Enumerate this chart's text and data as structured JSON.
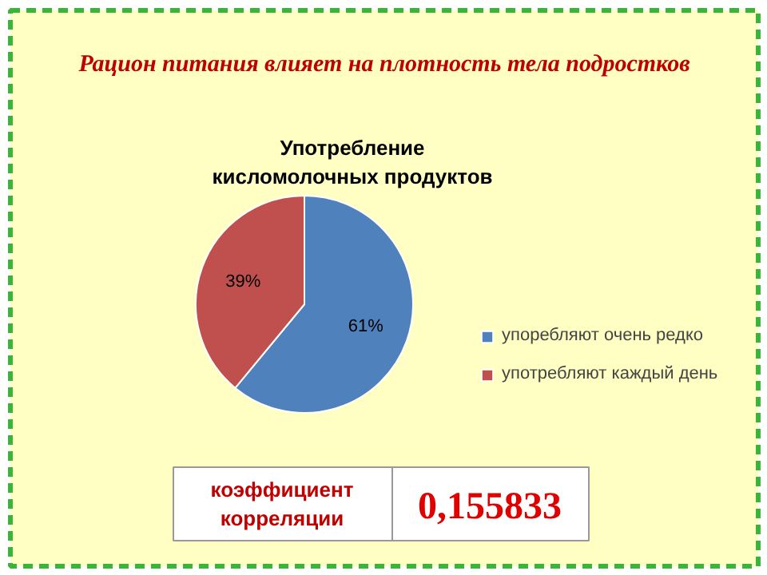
{
  "chart_data": {
    "type": "pie",
    "title": "Употребление кисломолочных продуктов",
    "subtitle": "Рацион питания влияет на плотность тела подростков",
    "categories": [
      "упоребляют очень редко",
      "употребляют каждый день"
    ],
    "values": [
      61,
      39
    ],
    "colors": [
      "#4f81bd",
      "#c0504d"
    ],
    "value_labels": [
      "61%",
      "39%"
    ],
    "legend": "right",
    "annotations": [
      "коэффициент корреляции",
      "0,155833"
    ]
  }
}
